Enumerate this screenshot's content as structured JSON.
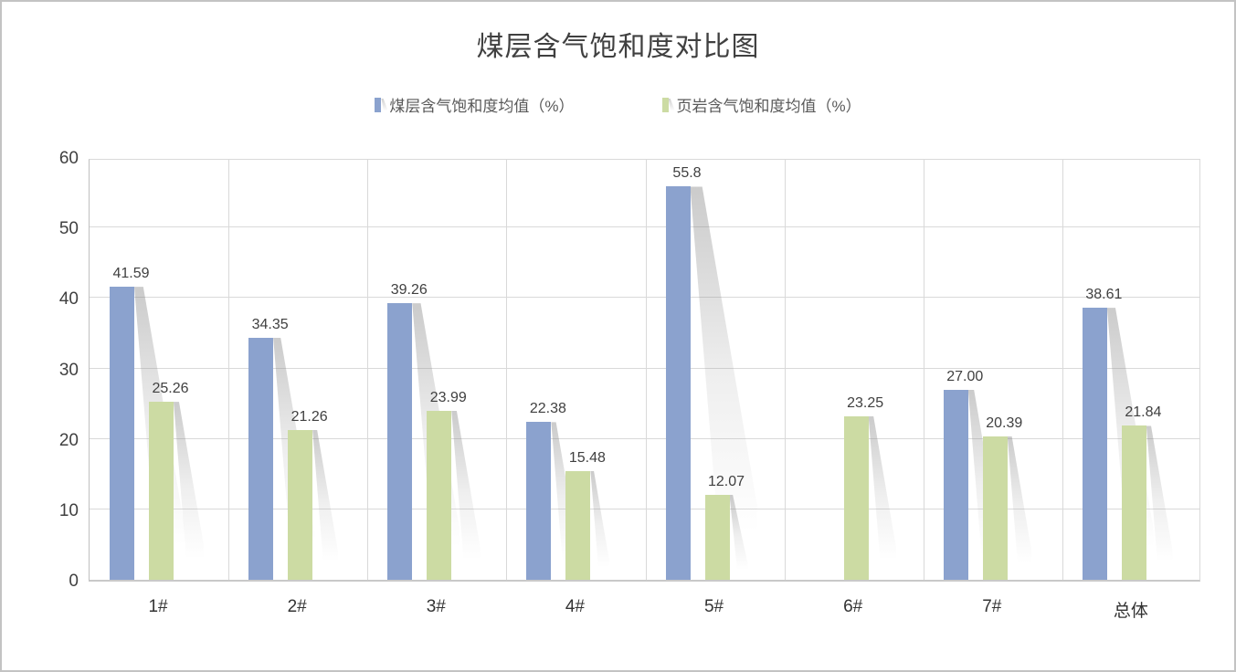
{
  "window": {
    "background": "#ffffff",
    "border_color": "#c3c3c3"
  },
  "chart_data": {
    "type": "bar",
    "title": "煤层含气饱和度对比图",
    "categories": [
      "1#",
      "2#",
      "3#",
      "4#",
      "5#",
      "6#",
      "7#",
      "总体"
    ],
    "series": [
      {
        "name": "煤层含气饱和度均值（%）",
        "color": "#8ba2ce",
        "values": [
          41.59,
          34.35,
          39.26,
          22.38,
          55.8,
          null,
          27.0,
          38.61
        ],
        "labels": [
          "41.59",
          "34.35",
          "39.26",
          "22.38",
          "55.8",
          null,
          "27.00",
          "38.61"
        ]
      },
      {
        "name": "页岩含气饱和度均值（%）",
        "color": "#ccdba3",
        "values": [
          25.26,
          21.26,
          23.99,
          15.48,
          12.07,
          23.25,
          20.39,
          21.84
        ],
        "labels": [
          "25.26",
          "21.26",
          "23.99",
          "15.48",
          "12.07",
          "23.25",
          "20.39",
          "21.84"
        ]
      }
    ],
    "ylim": [
      0,
      60
    ],
    "ytick_step": 10,
    "yticks": [
      "0",
      "10",
      "20",
      "30",
      "40",
      "50",
      "60"
    ],
    "grid": true,
    "legend_position": "top",
    "colors": {
      "gridline": "#d9d9d9",
      "axis_line": "#bfbfbf",
      "tick_text": "#404040",
      "data_label_text": "#404040",
      "legend_text": "#595959",
      "title_text": "#404040"
    }
  }
}
